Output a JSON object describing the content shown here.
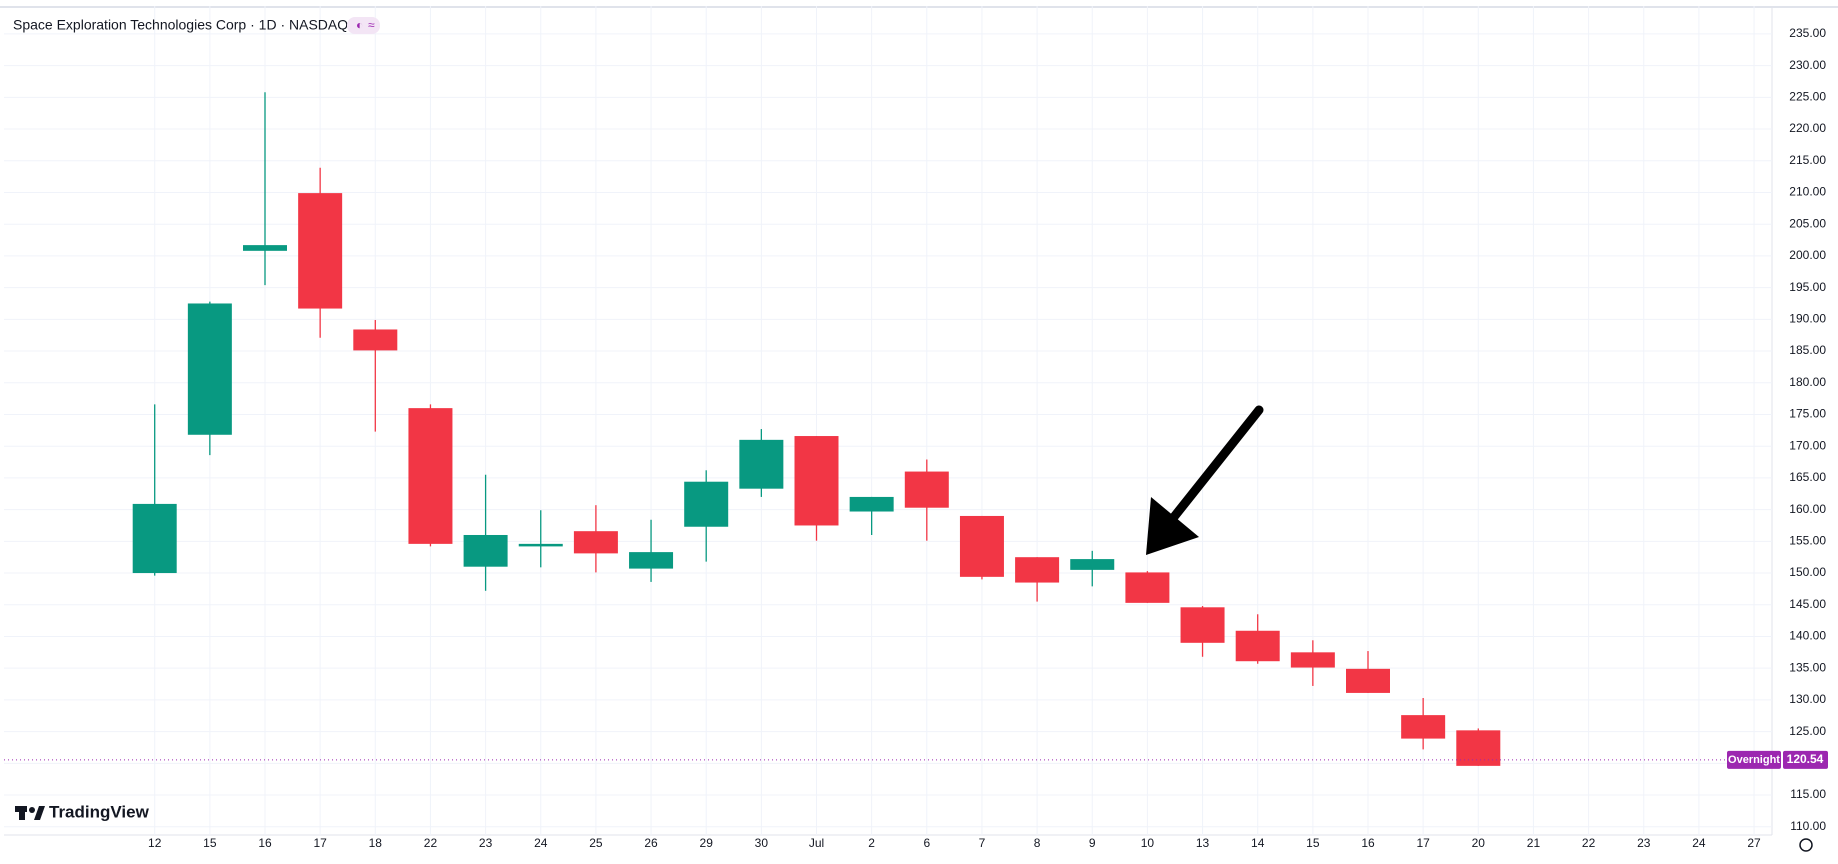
{
  "chart_data": {
    "type": "candlestick",
    "title": "Space Exploration Technologies Corp · 1D · NASDAQ",
    "brand": "TradingView",
    "categories": [
      "12",
      "15",
      "16",
      "17",
      "18",
      "22",
      "23",
      "24",
      "25",
      "26",
      "29",
      "30",
      "Jul",
      "2",
      "6",
      "7",
      "8",
      "9",
      "10",
      "13",
      "14",
      "15",
      "16",
      "17",
      "20",
      "21",
      "22",
      "23",
      "24",
      "27"
    ],
    "open": [
      150.0,
      171.8,
      200.8,
      209.9,
      188.4,
      176.0,
      151.0,
      154.2,
      156.6,
      150.7,
      157.3,
      163.3,
      171.6,
      159.7,
      166.0,
      159.0,
      152.5,
      150.5,
      150.1,
      144.6,
      140.9,
      137.5,
      134.9,
      127.6,
      125.2,
      null,
      null,
      null,
      null,
      null
    ],
    "high": [
      176.6,
      192.8,
      225.8,
      213.9,
      189.9,
      176.6,
      165.5,
      159.9,
      160.7,
      158.4,
      166.2,
      172.7,
      171.6,
      162.0,
      167.9,
      159.0,
      152.5,
      153.5,
      150.3,
      144.8,
      143.5,
      139.4,
      137.7,
      130.3,
      125.5,
      null,
      null,
      null,
      null,
      null
    ],
    "low": [
      149.6,
      168.6,
      195.4,
      187.1,
      172.3,
      154.2,
      147.2,
      150.9,
      150.1,
      148.6,
      151.8,
      162.0,
      155.1,
      156.0,
      155.1,
      149.0,
      145.5,
      147.9,
      145.3,
      136.8,
      135.7,
      132.2,
      131.1,
      122.2,
      119.6,
      null,
      null,
      null,
      null,
      null
    ],
    "close": [
      160.9,
      192.5,
      201.7,
      191.7,
      185.1,
      154.6,
      156.0,
      154.6,
      153.1,
      153.3,
      164.4,
      171.0,
      157.5,
      162.0,
      160.3,
      149.4,
      148.5,
      152.2,
      145.3,
      139.0,
      136.1,
      135.1,
      131.1,
      123.9,
      119.6,
      null,
      null,
      null,
      null,
      null
    ],
    "up_color": "#089981",
    "down_color": "#f23645",
    "ylim": [
      108.7,
      239.4
    ],
    "yticks": [
      {
        "value": 110,
        "label": "110.00"
      },
      {
        "value": 115,
        "label": "115.00"
      },
      {
        "value": 120,
        "label": "120.00"
      },
      {
        "value": 125,
        "label": "125.00"
      },
      {
        "value": 130,
        "label": "130.00"
      },
      {
        "value": 135,
        "label": "135.00"
      },
      {
        "value": 140,
        "label": "140.00"
      },
      {
        "value": 145,
        "label": "145.00"
      },
      {
        "value": 150,
        "label": "150.00"
      },
      {
        "value": 155,
        "label": "155.00"
      },
      {
        "value": 160,
        "label": "160.00"
      },
      {
        "value": 165,
        "label": "165.00"
      },
      {
        "value": 170,
        "label": "170.00"
      },
      {
        "value": 175,
        "label": "175.00"
      },
      {
        "value": 180,
        "label": "180.00"
      },
      {
        "value": 185,
        "label": "185.00"
      },
      {
        "value": 190,
        "label": "190.00"
      },
      {
        "value": 195,
        "label": "195.00"
      },
      {
        "value": 200,
        "label": "200.00"
      },
      {
        "value": 205,
        "label": "205.00"
      },
      {
        "value": 210,
        "label": "210.00"
      },
      {
        "value": 215,
        "label": "215.00"
      },
      {
        "value": 220,
        "label": "220.00"
      },
      {
        "value": 225,
        "label": "225.00"
      },
      {
        "value": 230,
        "label": "230.00"
      },
      {
        "value": 235,
        "label": "235.00"
      }
    ],
    "grid": true,
    "last_price": {
      "label": "Overnight",
      "value": 120.54,
      "color": "#9c27b0"
    }
  }
}
